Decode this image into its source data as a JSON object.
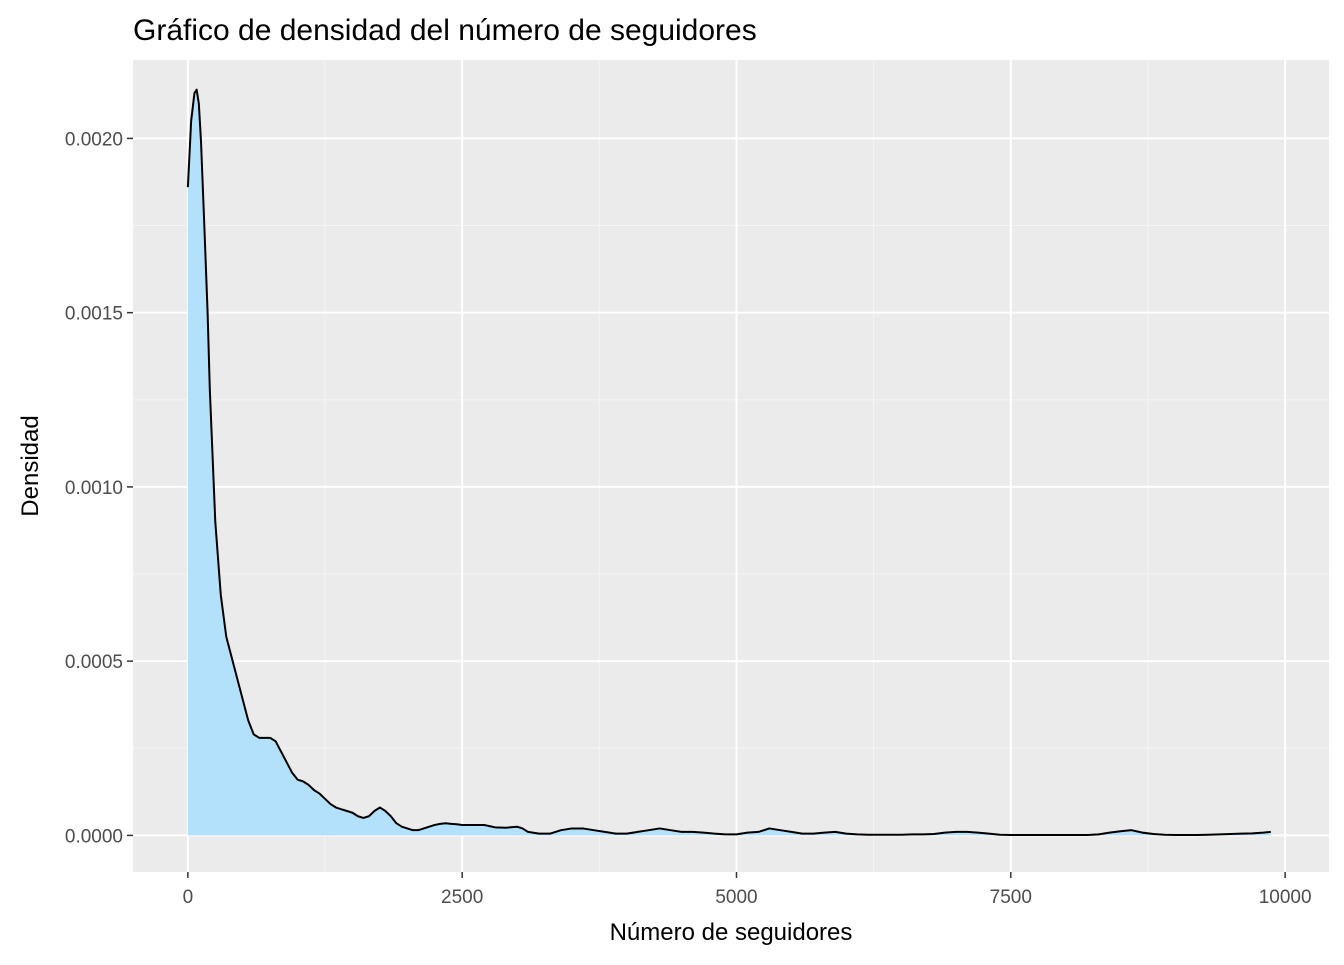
{
  "chart_data": {
    "type": "area",
    "title": "Gráfico de densidad del número de seguidores",
    "xlabel": "Número de seguidores",
    "ylabel": "Densidad",
    "xlim": [
      -500,
      10400
    ],
    "ylim": [
      -0.000105,
      0.002225
    ],
    "x_ticks": [
      0,
      2500,
      5000,
      7500,
      10000
    ],
    "x_tick_labels": [
      "0",
      "2500",
      "5000",
      "7500",
      "10000"
    ],
    "y_ticks": [
      0,
      0.0005,
      0.001,
      0.0015,
      0.002
    ],
    "y_tick_labels": [
      "0.0000",
      "0.0005",
      "0.0010",
      "0.0015",
      "0.0020"
    ],
    "grid": true,
    "legend": "none",
    "colors": {
      "panel_background": "#ebebeb",
      "grid_major": "#ffffff",
      "grid_minor": "#f5f5f5",
      "fill": "#b3e0fa",
      "line": "#000000"
    },
    "series": [
      {
        "x": [
          0,
          30,
          60,
          80,
          100,
          120,
          150,
          180,
          200,
          250,
          300,
          350,
          400,
          450,
          500,
          550,
          600,
          650,
          700,
          750,
          800,
          850,
          900,
          950,
          1000,
          1050,
          1100,
          1150,
          1200,
          1250,
          1300,
          1350,
          1400,
          1450,
          1500,
          1550,
          1600,
          1650,
          1700,
          1750,
          1800,
          1850,
          1900,
          1950,
          2000,
          2050,
          2100,
          2150,
          2200,
          2250,
          2300,
          2350,
          2400,
          2450,
          2500,
          2600,
          2700,
          2800,
          2900,
          3000,
          3050,
          3100,
          3200,
          3300,
          3400,
          3500,
          3600,
          3700,
          3800,
          3900,
          4000,
          4100,
          4200,
          4300,
          4400,
          4500,
          4600,
          4700,
          4800,
          4900,
          5000,
          5100,
          5200,
          5300,
          5400,
          5500,
          5600,
          5700,
          5800,
          5900,
          6000,
          6100,
          6200,
          6300,
          6400,
          6500,
          6600,
          6700,
          6800,
          6900,
          7000,
          7100,
          7200,
          7300,
          7400,
          7500,
          7600,
          7700,
          7800,
          7900,
          8000,
          8100,
          8200,
          8300,
          8400,
          8500,
          8600,
          8700,
          8800,
          8900,
          9000,
          9100,
          9200,
          9300,
          9400,
          9500,
          9600,
          9700,
          9800,
          9870
        ],
        "y": [
          0.00186,
          0.00205,
          0.00213,
          0.00214,
          0.0021,
          0.00199,
          0.00175,
          0.0015,
          0.00128,
          0.0009,
          0.00069,
          0.00057,
          0.00051,
          0.00045,
          0.00039,
          0.00033,
          0.00029,
          0.00028,
          0.00028,
          0.00028,
          0.00027,
          0.00024,
          0.00021,
          0.00018,
          0.00016,
          0.000155,
          0.000145,
          0.00013,
          0.00012,
          0.000105,
          9e-05,
          8e-05,
          7.5e-05,
          7e-05,
          6.5e-05,
          5.5e-05,
          5e-05,
          5.5e-05,
          7e-05,
          8e-05,
          7e-05,
          5.5e-05,
          3.5e-05,
          2.5e-05,
          2e-05,
          1.5e-05,
          1.5e-05,
          2e-05,
          2.5e-05,
          3e-05,
          3.3e-05,
          3.5e-05,
          3.3e-05,
          3.2e-05,
          3e-05,
          3e-05,
          3e-05,
          2.3e-05,
          2.2e-05,
          2.5e-05,
          2e-05,
          1e-05,
          5e-06,
          5e-06,
          1.5e-05,
          2e-05,
          2e-05,
          1.5e-05,
          1e-05,
          5e-06,
          5e-06,
          1e-05,
          1.5e-05,
          2e-05,
          1.5e-05,
          1e-05,
          1e-05,
          8e-06,
          5e-06,
          3e-06,
          3e-06,
          8e-06,
          1e-05,
          2e-05,
          1.5e-05,
          1e-05,
          5e-06,
          5e-06,
          8e-06,
          1e-05,
          5e-06,
          3e-06,
          2e-06,
          2e-06,
          2e-06,
          2e-06,
          3e-06,
          3e-06,
          4e-06,
          8e-06,
          1e-05,
          1e-05,
          8e-06,
          5e-06,
          2e-06,
          1e-06,
          1e-06,
          1e-06,
          1e-06,
          1e-06,
          1e-06,
          1e-06,
          1e-06,
          3e-06,
          8e-06,
          1.2e-05,
          1.5e-05,
          8e-06,
          4e-06,
          2e-06,
          1e-06,
          1e-06,
          1e-06,
          2e-06,
          3e-06,
          4e-06,
          5e-06,
          6e-06,
          8e-06,
          1e-05
        ]
      }
    ]
  }
}
